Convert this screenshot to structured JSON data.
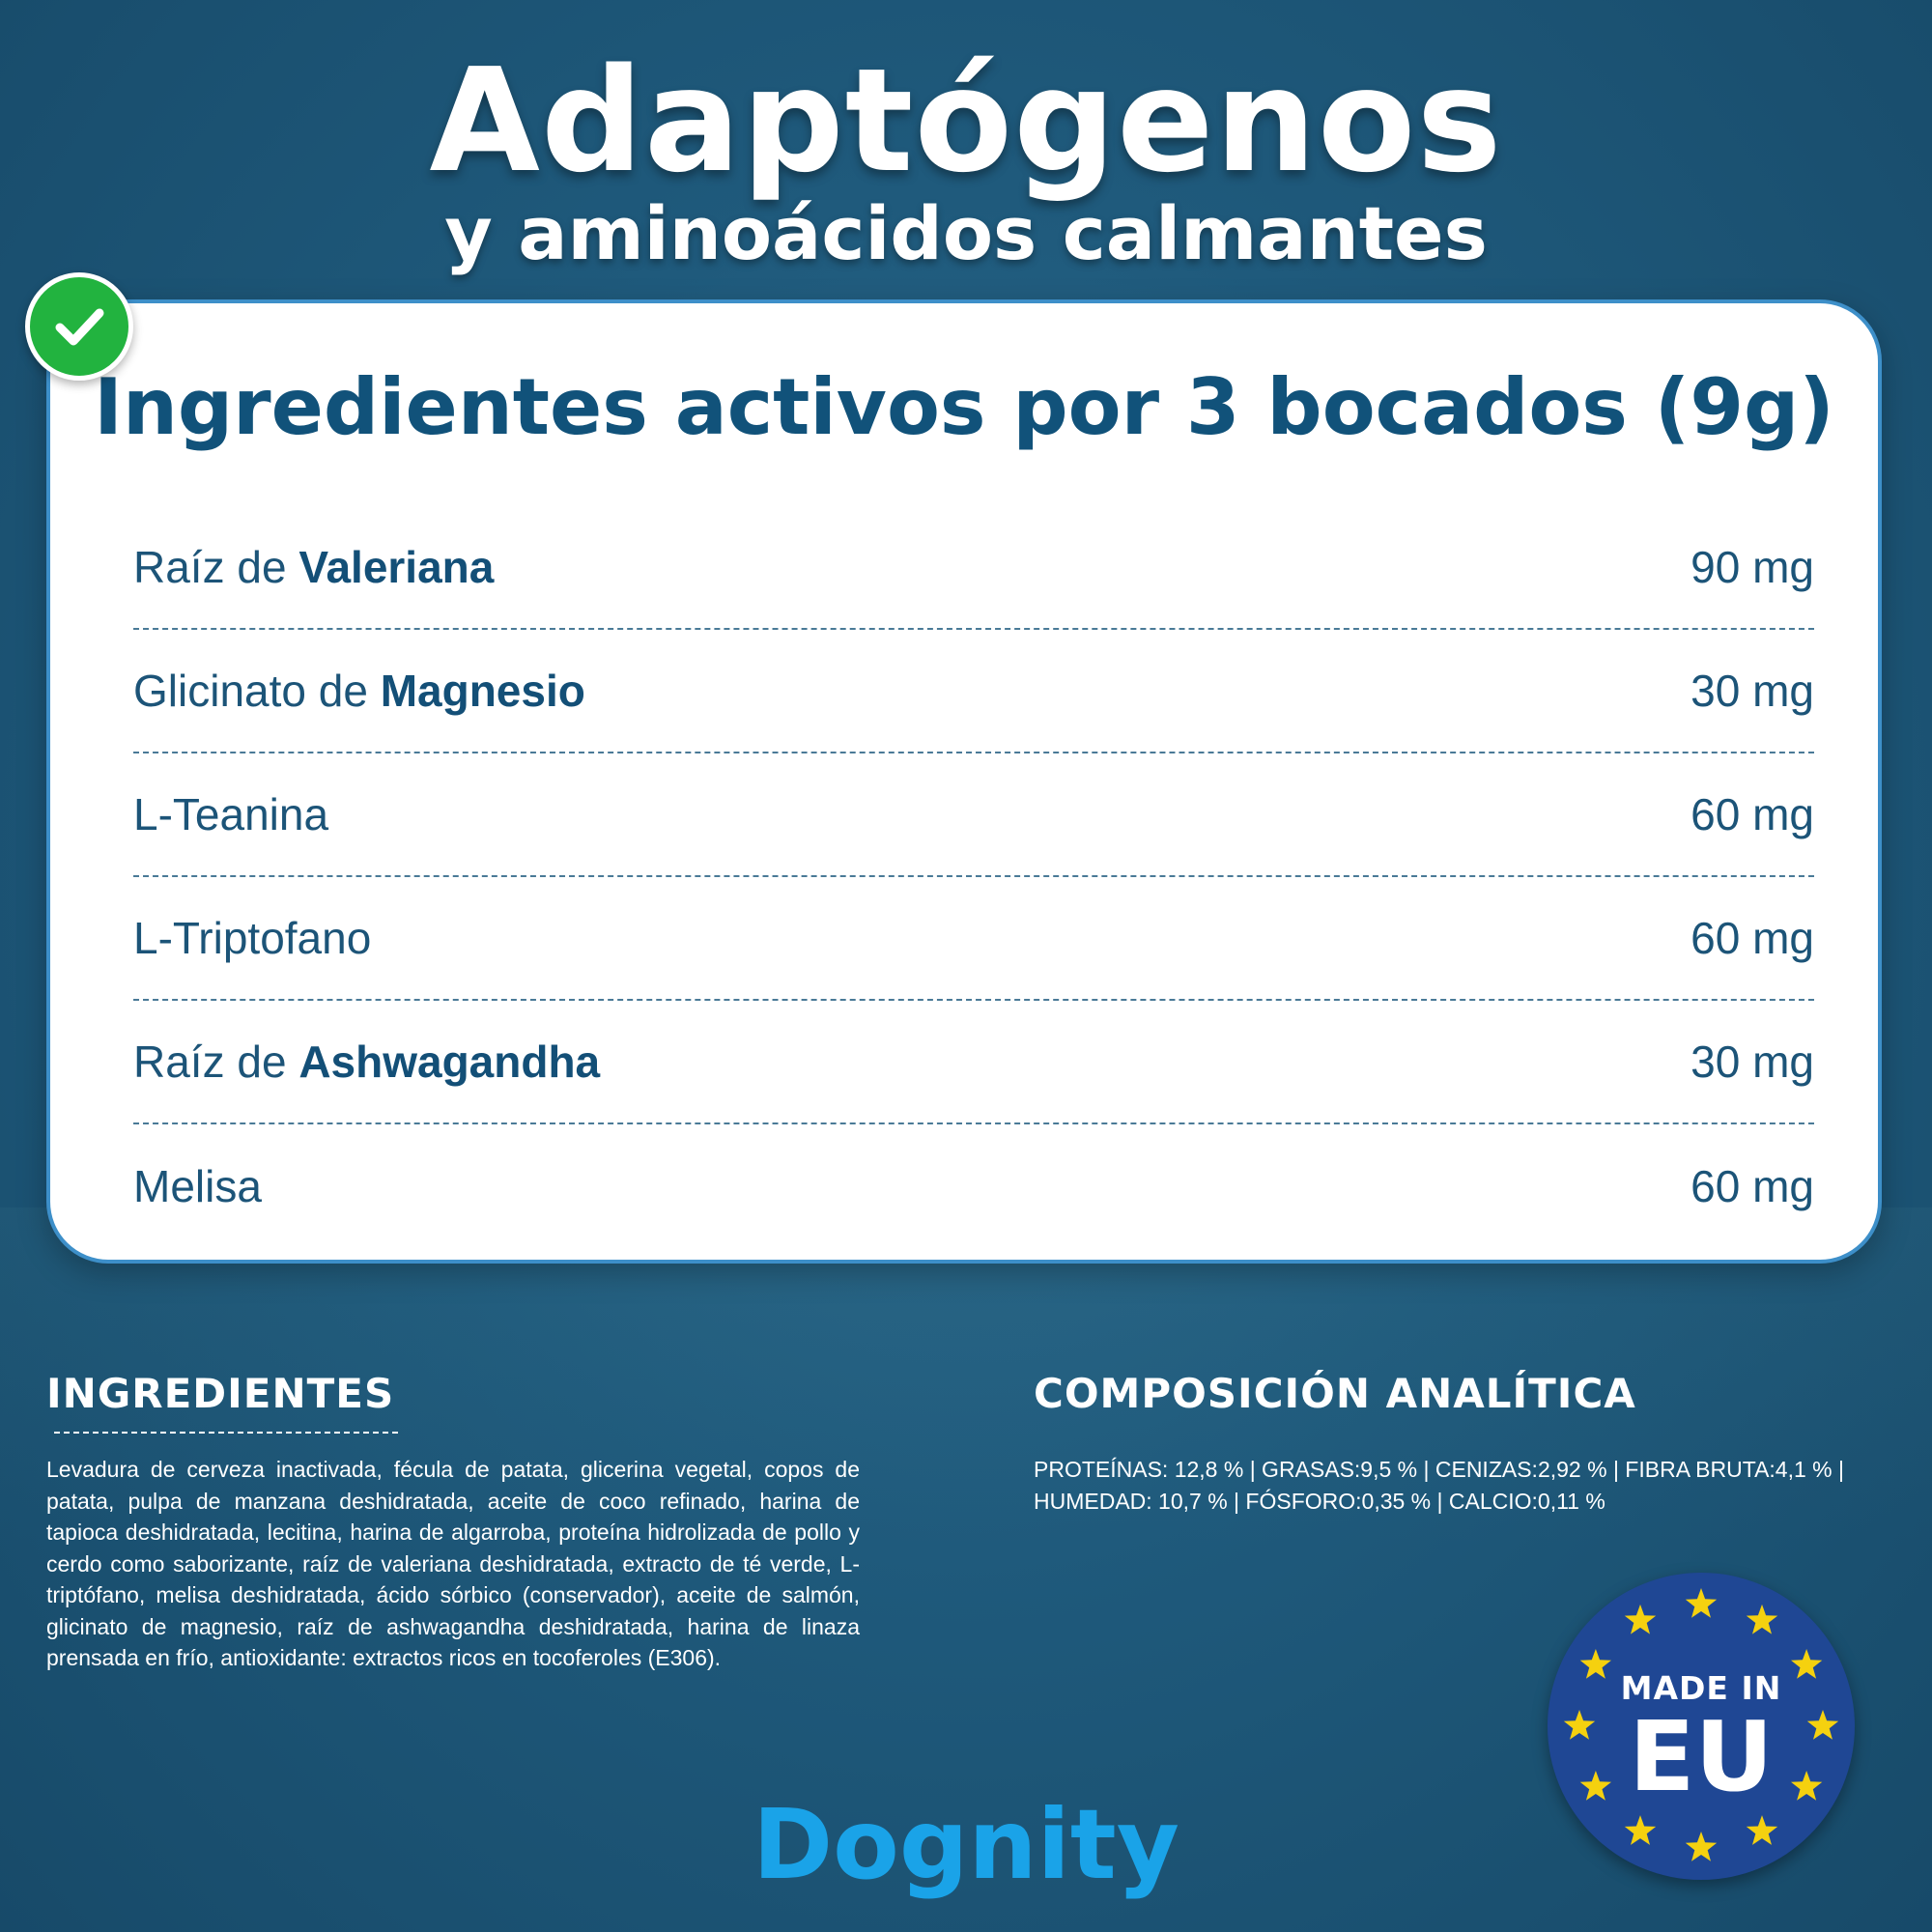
{
  "header": {
    "title": "Adaptógenos",
    "subtitle": "y aminoácidos calmantes"
  },
  "card": {
    "title": "Ingredientes activos por 3 bocados (9g)",
    "rows": [
      {
        "prefix": "Raíz de ",
        "bold": "Valeriana",
        "amount": "90 mg"
      },
      {
        "prefix": "Glicinato de ",
        "bold": "Magnesio",
        "amount": "30 mg"
      },
      {
        "prefix": "L-Teanina",
        "bold": "",
        "amount": "60 mg"
      },
      {
        "prefix": "L-Triptofano",
        "bold": "",
        "amount": "60 mg"
      },
      {
        "prefix": "Raíz de ",
        "bold": "Ashwagandha",
        "amount": "30 mg"
      },
      {
        "prefix": "Melisa",
        "bold": "",
        "amount": "60 mg"
      }
    ]
  },
  "ingredients": {
    "heading": "INGREDIENTES",
    "text": "Levadura de cerveza inactivada, fécula de patata, glicerina vegetal, copos de patata, pulpa de manzana deshidratada, aceite de coco refinado, harina de tapioca deshidratada, lecitina, harina de algarroba, proteína hidrolizada de pollo y cerdo como saborizante, raíz de valeriana deshidratada, extracto de té verde, L-triptófano, melisa deshidratada, ácido sórbico (conservador), aceite de salmón, glicinato de magnesio, raíz de ashwagandha deshidratada, harina de linaza prensada en frío, antioxidante: extractos ricos en tocoferoles (E306)."
  },
  "composition": {
    "heading": "COMPOSICIÓN ANALÍTICA",
    "text": "PROTEÍNAS: 12,8 % | GRASAS:9,5 % | CENIZAS:2,92 % | FIBRA BRUTA:4,1 % | HUMEDAD: 10,7 % | FÓSFORO:0,35 % | CALCIO:0,11 %"
  },
  "eu_badge": {
    "line1": "MADE IN",
    "line2": "EU"
  },
  "brand": {
    "logo": "Dognity"
  },
  "colors": {
    "background": "#1f5a7c",
    "card_title": "#11527a",
    "check_badge": "#22b33f",
    "eu_badge": "#1f4794",
    "eu_stars": "#f5d10f",
    "logo": "#1aa3e8"
  },
  "icons": {
    "check": "check-icon",
    "stars": "star-icon"
  }
}
